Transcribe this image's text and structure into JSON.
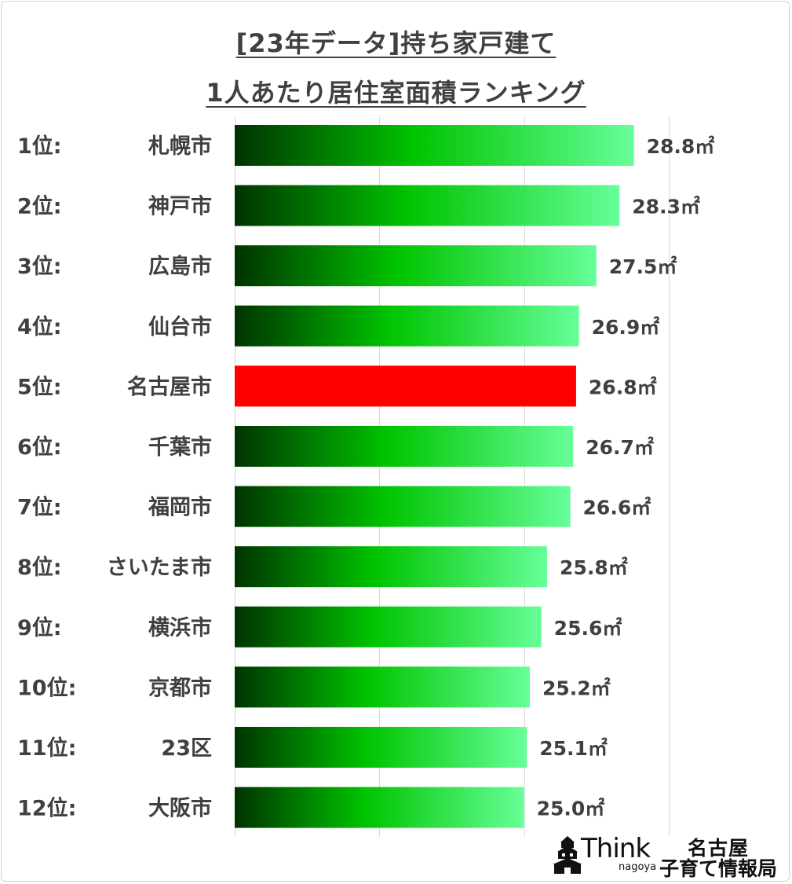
{
  "title_line1": "[23年データ]持ち家戸建て",
  "title_line2": "1人あたり居住室面積ランキング",
  "chart_data": {
    "type": "bar",
    "orientation": "horizontal",
    "categories": [
      "1位: 札幌市",
      "2位: 神戸市",
      "3位: 広島市",
      "4位: 仙台市",
      "5位: 名古屋市",
      "6位: 千葉市",
      "7位: 福岡市",
      "8位: さいたま市",
      "9位: 横浜市",
      "10位: 京都市",
      "11位: 23区",
      "12位: 大阪市"
    ],
    "ranks": [
      "1位:",
      "2位:",
      "3位:",
      "4位:",
      "5位:",
      "6位:",
      "7位:",
      "8位:",
      "9位:",
      "10位:",
      "11位:",
      "12位:"
    ],
    "cities": [
      "札幌市",
      "神戸市",
      "広島市",
      "仙台市",
      "名古屋市",
      "千葉市",
      "福岡市",
      "さいたま市",
      "横浜市",
      "京都市",
      "23区",
      "大阪市"
    ],
    "values": [
      28.8,
      28.3,
      27.5,
      26.9,
      26.8,
      26.7,
      26.6,
      25.8,
      25.6,
      25.2,
      25.1,
      25.0
    ],
    "value_labels": [
      "28.8㎡",
      "28.3㎡",
      "27.5㎡",
      "26.9㎡",
      "26.8㎡",
      "26.7㎡",
      "26.6㎡",
      "25.8㎡",
      "25.6㎡",
      "25.2㎡",
      "25.1㎡",
      "25.0㎡"
    ],
    "highlight_index": 4,
    "xlim": [
      15,
      32.5
    ],
    "grid": true,
    "colors": {
      "gradient_dark": "#003300",
      "gradient_mid": "#00c400",
      "gradient_light": "#66ff99",
      "highlight": "#ff0000",
      "text": "#404040",
      "grid": "#d9d9d9"
    }
  },
  "logo": {
    "think": "Think",
    "nagoya": "nagoya",
    "jp_line1": "名古屋",
    "jp_line2": "子育て情報局"
  }
}
